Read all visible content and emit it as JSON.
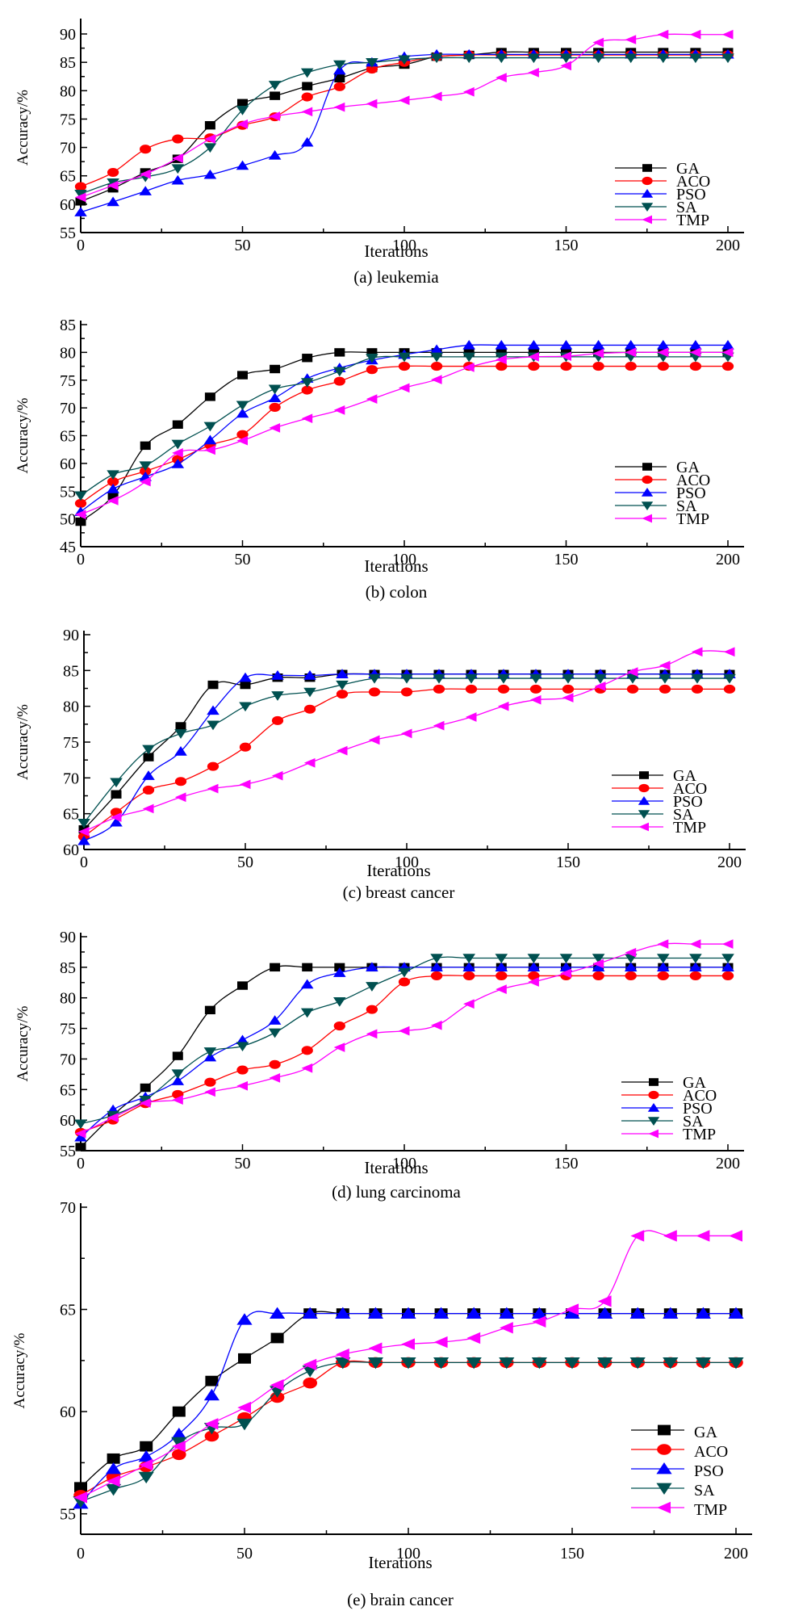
{
  "chart_data": [
    {
      "type": "line",
      "caption": "(a) leukemia",
      "xlabel": "Iterations",
      "ylabel": "Accuracy/%",
      "xlim": [
        0,
        200
      ],
      "ylim": [
        55,
        92
      ],
      "xticks": [
        0,
        50,
        100,
        150,
        200
      ],
      "yticks": [
        55,
        60,
        65,
        70,
        75,
        80,
        85,
        90
      ],
      "legend_position": "bottom-right",
      "x": [
        0,
        10,
        20,
        30,
        40,
        50,
        60,
        70,
        80,
        90,
        100,
        110,
        120,
        130,
        140,
        150,
        160,
        170,
        180,
        190,
        200
      ],
      "series": [
        {
          "name": "GA",
          "marker": "square",
          "color": "#000000",
          "values": [
            60.5,
            62.8,
            65.6,
            68.0,
            73.9,
            77.8,
            79.1,
            80.8,
            82.2,
            84.0,
            84.6,
            86.0,
            86.3,
            86.8,
            86.8,
            86.8,
            86.8,
            86.8,
            86.8,
            86.8,
            86.8
          ]
        },
        {
          "name": "ACO",
          "marker": "circle",
          "color": "#ff0000",
          "values": [
            63.1,
            65.6,
            69.7,
            71.5,
            71.7,
            73.9,
            75.4,
            78.9,
            80.7,
            83.8,
            85.0,
            86.0,
            86.3,
            86.3,
            86.3,
            86.3,
            86.3,
            86.3,
            86.3,
            86.3,
            86.3
          ]
        },
        {
          "name": "PSO",
          "marker": "triangle-up",
          "color": "#0000ff",
          "values": [
            58.6,
            60.4,
            62.3,
            64.2,
            65.2,
            66.8,
            68.6,
            70.9,
            83.6,
            85.0,
            86.0,
            86.4,
            86.4,
            86.4,
            86.4,
            86.4,
            86.4,
            86.4,
            86.4,
            86.4,
            86.4
          ]
        },
        {
          "name": "SA",
          "marker": "triangle-down",
          "color": "#005050",
          "values": [
            61.8,
            63.8,
            64.8,
            66.3,
            70.0,
            76.6,
            81.0,
            83.2,
            84.6,
            85.0,
            85.5,
            85.8,
            85.8,
            85.8,
            85.8,
            85.8,
            85.8,
            85.8,
            85.8,
            85.8,
            85.8
          ]
        },
        {
          "name": "TMP",
          "marker": "triangle-left",
          "color": "#ff00ff",
          "values": [
            61.2,
            63.3,
            65.3,
            68.1,
            71.5,
            74.1,
            75.5,
            76.3,
            77.1,
            77.7,
            78.3,
            79.0,
            79.8,
            82.3,
            83.2,
            84.4,
            88.5,
            89.0,
            89.9,
            89.9,
            89.9
          ]
        }
      ]
    },
    {
      "type": "line",
      "caption": "(b) colon",
      "xlabel": "Iterations",
      "ylabel": "Accuracy/%",
      "xlim": [
        0,
        200
      ],
      "ylim": [
        45,
        85
      ],
      "xticks": [
        0,
        50,
        100,
        150,
        200
      ],
      "yticks": [
        45,
        50,
        55,
        60,
        65,
        70,
        75,
        80,
        85
      ],
      "legend_position": "bottom-right",
      "x": [
        0,
        10,
        20,
        30,
        40,
        50,
        60,
        70,
        80,
        90,
        100,
        110,
        120,
        130,
        140,
        150,
        160,
        170,
        180,
        190,
        200
      ],
      "series": [
        {
          "name": "GA",
          "marker": "square",
          "color": "#000000",
          "values": [
            49.5,
            54.2,
            63.2,
            67.0,
            72.0,
            75.9,
            77.0,
            79.0,
            80.0,
            80.0,
            80.0,
            80.0,
            80.0,
            80.0,
            80.0,
            80.0,
            80.0,
            80.0,
            80.0,
            80.0,
            80.0
          ]
        },
        {
          "name": "ACO",
          "marker": "circle",
          "color": "#ff0000",
          "values": [
            52.8,
            56.7,
            58.6,
            60.7,
            63.3,
            65.2,
            70.1,
            73.2,
            74.8,
            76.9,
            77.5,
            77.5,
            77.5,
            77.5,
            77.5,
            77.5,
            77.5,
            77.5,
            77.5,
            77.5,
            77.5
          ]
        },
        {
          "name": "PSO",
          "marker": "triangle-up",
          "color": "#0000ff",
          "values": [
            51.3,
            55.4,
            57.6,
            59.9,
            64.2,
            69.0,
            71.8,
            75.3,
            77.2,
            78.6,
            79.6,
            80.5,
            81.3,
            81.3,
            81.3,
            81.3,
            81.3,
            81.3,
            81.3,
            81.3,
            81.3
          ]
        },
        {
          "name": "SA",
          "marker": "triangle-down",
          "color": "#005050",
          "values": [
            54.2,
            58.0,
            59.6,
            63.5,
            66.7,
            70.5,
            73.4,
            74.6,
            76.6,
            79.0,
            79.2,
            79.2,
            79.2,
            79.2,
            79.2,
            79.2,
            79.2,
            79.2,
            79.2,
            79.2,
            79.2
          ]
        },
        {
          "name": "TMP",
          "marker": "triangle-left",
          "color": "#ff00ff",
          "values": [
            50.8,
            53.3,
            56.7,
            61.9,
            62.4,
            64.1,
            66.4,
            68.1,
            69.6,
            71.6,
            73.6,
            75.1,
            77.3,
            78.7,
            79.2,
            79.3,
            79.8,
            80.0,
            80.0,
            80.0,
            80.0
          ]
        }
      ]
    },
    {
      "type": "line",
      "caption": "(c) breast cancer",
      "xlabel": "Iterations",
      "ylabel": "Accuracy/%",
      "xlim": [
        0,
        200
      ],
      "ylim": [
        60,
        90
      ],
      "xticks": [
        0,
        50,
        100,
        150,
        200
      ],
      "yticks": [
        60,
        65,
        70,
        75,
        80,
        85,
        90
      ],
      "legend_position": "bottom-right",
      "x": [
        0,
        10,
        20,
        30,
        40,
        50,
        60,
        70,
        80,
        90,
        100,
        110,
        120,
        130,
        140,
        150,
        160,
        170,
        180,
        190,
        200
      ],
      "series": [
        {
          "name": "GA",
          "marker": "square",
          "color": "#000000",
          "values": [
            62.8,
            67.7,
            72.9,
            77.2,
            83.0,
            83.0,
            84.0,
            84.0,
            84.5,
            84.5,
            84.5,
            84.5,
            84.5,
            84.5,
            84.5,
            84.5,
            84.5,
            84.5,
            84.5,
            84.5,
            84.5
          ]
        },
        {
          "name": "ACO",
          "marker": "circle",
          "color": "#ff0000",
          "values": [
            61.8,
            65.2,
            68.3,
            69.5,
            71.6,
            74.3,
            78.0,
            79.6,
            81.7,
            82.0,
            82.0,
            82.4,
            82.4,
            82.4,
            82.4,
            82.4,
            82.4,
            82.4,
            82.4,
            82.4,
            82.4
          ]
        },
        {
          "name": "PSO",
          "marker": "triangle-up",
          "color": "#0000ff",
          "values": [
            61.2,
            63.8,
            70.3,
            73.7,
            79.4,
            84.0,
            84.3,
            84.3,
            84.5,
            84.5,
            84.5,
            84.5,
            84.5,
            84.5,
            84.5,
            84.5,
            84.5,
            84.5,
            84.5,
            84.5,
            84.5
          ]
        },
        {
          "name": "SA",
          "marker": "triangle-down",
          "color": "#005050",
          "values": [
            63.7,
            69.4,
            74.0,
            76.2,
            77.4,
            80.0,
            81.5,
            82.0,
            83.0,
            83.9,
            83.9,
            83.9,
            83.9,
            83.9,
            83.9,
            83.9,
            83.9,
            83.9,
            83.9,
            83.9,
            83.9
          ]
        },
        {
          "name": "TMP",
          "marker": "triangle-left",
          "color": "#ff00ff",
          "values": [
            62.5,
            64.5,
            65.7,
            67.3,
            68.5,
            69.1,
            70.3,
            72.1,
            73.8,
            75.3,
            76.2,
            77.3,
            78.5,
            80.0,
            80.9,
            81.2,
            82.8,
            84.8,
            85.7,
            87.6,
            87.6
          ]
        }
      ]
    },
    {
      "type": "line",
      "caption": "(d) lung carcinoma",
      "xlabel": "Iterations",
      "ylabel": "Accuracy/%",
      "xlim": [
        0,
        200
      ],
      "ylim": [
        55,
        90
      ],
      "xticks": [
        0,
        50,
        100,
        150,
        200
      ],
      "yticks": [
        55,
        60,
        65,
        70,
        75,
        80,
        85,
        90
      ],
      "legend_position": "bottom-right",
      "x": [
        0,
        10,
        20,
        30,
        40,
        50,
        60,
        70,
        80,
        90,
        100,
        110,
        120,
        130,
        140,
        150,
        160,
        170,
        180,
        190,
        200
      ],
      "series": [
        {
          "name": "GA",
          "marker": "square",
          "color": "#000000",
          "values": [
            55.6,
            60.8,
            65.3,
            70.5,
            78.0,
            82.0,
            85.0,
            85.0,
            85.0,
            85.0,
            85.0,
            85.0,
            85.0,
            85.0,
            85.0,
            85.0,
            85.0,
            85.0,
            85.0,
            85.0,
            85.0
          ]
        },
        {
          "name": "ACO",
          "marker": "circle",
          "color": "#ff0000",
          "values": [
            58.0,
            60.0,
            62.7,
            64.2,
            66.2,
            68.2,
            69.1,
            71.4,
            75.4,
            78.1,
            82.6,
            83.6,
            83.6,
            83.6,
            83.6,
            83.6,
            83.6,
            83.6,
            83.6,
            83.6,
            83.6
          ]
        },
        {
          "name": "PSO",
          "marker": "triangle-up",
          "color": "#0000ff",
          "values": [
            57.2,
            61.7,
            63.8,
            66.4,
            70.3,
            73.1,
            76.3,
            82.2,
            84.1,
            85.0,
            85.0,
            85.0,
            85.0,
            85.0,
            85.0,
            85.0,
            85.0,
            85.0,
            85.0,
            85.0,
            85.0
          ]
        },
        {
          "name": "SA",
          "marker": "triangle-down",
          "color": "#005050",
          "values": [
            59.4,
            60.8,
            63.3,
            67.6,
            71.2,
            72.1,
            74.3,
            77.6,
            79.4,
            81.9,
            84.2,
            86.5,
            86.5,
            86.5,
            86.5,
            86.5,
            86.5,
            86.5,
            86.5,
            86.5,
            86.5
          ]
        },
        {
          "name": "TMP",
          "marker": "triangle-left",
          "color": "#ff00ff",
          "values": [
            57.8,
            60.4,
            62.8,
            63.3,
            64.6,
            65.6,
            66.9,
            68.5,
            71.9,
            74.1,
            74.6,
            75.5,
            79.0,
            81.4,
            82.6,
            84.0,
            85.6,
            87.4,
            88.8,
            88.8,
            88.8
          ]
        }
      ]
    },
    {
      "type": "line",
      "caption": "(e) brain cancer",
      "xlabel": "Iterations",
      "ylabel": "Accuracy/%",
      "xlim": [
        0,
        200
      ],
      "ylim": [
        54,
        70
      ],
      "xticks": [
        0,
        50,
        100,
        150,
        200
      ],
      "yticks": [
        55,
        60,
        65,
        70
      ],
      "legend_position": "bottom-right",
      "x": [
        0,
        10,
        20,
        30,
        40,
        50,
        60,
        70,
        80,
        90,
        100,
        110,
        120,
        130,
        140,
        150,
        160,
        170,
        180,
        190,
        200
      ],
      "series": [
        {
          "name": "GA",
          "marker": "square",
          "color": "#000000",
          "values": [
            56.3,
            57.7,
            58.3,
            60.0,
            61.5,
            62.6,
            63.6,
            64.8,
            64.8,
            64.8,
            64.8,
            64.8,
            64.8,
            64.8,
            64.8,
            64.8,
            64.8,
            64.8,
            64.8,
            64.8,
            64.8
          ]
        },
        {
          "name": "ACO",
          "marker": "circle",
          "color": "#ff0000",
          "values": [
            55.9,
            56.8,
            57.3,
            57.9,
            58.8,
            59.7,
            60.7,
            61.4,
            62.4,
            62.4,
            62.4,
            62.4,
            62.4,
            62.4,
            62.4,
            62.4,
            62.4,
            62.4,
            62.4,
            62.4,
            62.4
          ]
        },
        {
          "name": "PSO",
          "marker": "triangle-up",
          "color": "#0000ff",
          "values": [
            55.5,
            57.2,
            57.8,
            58.9,
            60.8,
            64.5,
            64.8,
            64.8,
            64.8,
            64.8,
            64.8,
            64.8,
            64.8,
            64.8,
            64.8,
            64.8,
            64.8,
            64.8,
            64.8,
            64.8,
            64.8
          ]
        },
        {
          "name": "SA",
          "marker": "triangle-down",
          "color": "#005050",
          "values": [
            55.6,
            56.2,
            56.8,
            58.5,
            59.2,
            59.4,
            61.0,
            62.0,
            62.4,
            62.4,
            62.4,
            62.4,
            62.4,
            62.4,
            62.4,
            62.4,
            62.4,
            62.4,
            62.4,
            62.4,
            62.4
          ]
        },
        {
          "name": "TMP",
          "marker": "triangle-left",
          "color": "#ff00ff",
          "values": [
            55.8,
            56.6,
            57.4,
            58.3,
            59.4,
            60.2,
            61.3,
            62.3,
            62.8,
            63.1,
            63.3,
            63.4,
            63.6,
            64.1,
            64.4,
            65.0,
            65.4,
            68.6,
            68.6,
            68.6,
            68.6
          ]
        }
      ]
    }
  ]
}
